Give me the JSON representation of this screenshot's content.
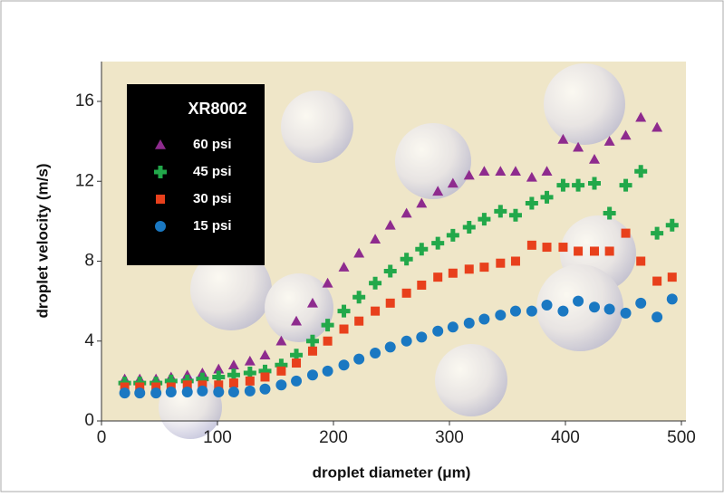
{
  "chart_data": {
    "type": "scatter",
    "x_label": "droplet diameter (μm)",
    "y_label": "droplet velocity (m/s)",
    "legend_title": "XR8002",
    "xlim": [
      0,
      500
    ],
    "xticks": [
      0,
      100,
      200,
      300,
      400,
      500
    ],
    "ylim": [
      0,
      16
    ],
    "yticks": [
      0,
      4,
      8,
      12,
      16
    ],
    "x": [
      20,
      33,
      47,
      60,
      74,
      87,
      101,
      114,
      128,
      141,
      155,
      168,
      182,
      195,
      209,
      222,
      236,
      249,
      263,
      276,
      290,
      303,
      317,
      330,
      344,
      357,
      371,
      384,
      398,
      411,
      425,
      438,
      452,
      465,
      479,
      492
    ],
    "series": [
      {
        "name": "60 psi",
        "color": "#8e2b8e",
        "marker": "triangle",
        "values": [
          2.1,
          2.1,
          2.1,
          2.2,
          2.3,
          2.4,
          2.6,
          2.8,
          3.0,
          3.3,
          4.0,
          5.0,
          5.9,
          6.9,
          7.7,
          8.4,
          9.1,
          9.8,
          10.4,
          10.9,
          11.5,
          11.9,
          12.3,
          12.5,
          12.5,
          12.5,
          12.2,
          12.5,
          14.1,
          13.7,
          13.1,
          14.0,
          14.3,
          15.2,
          14.7,
          null
        ]
      },
      {
        "name": "45 psi",
        "color": "#22a84a",
        "marker": "plus",
        "values": [
          1.9,
          1.9,
          1.9,
          2.0,
          2.0,
          2.1,
          2.2,
          2.3,
          2.4,
          2.5,
          2.8,
          3.3,
          4.0,
          4.8,
          5.5,
          6.2,
          6.9,
          7.5,
          8.1,
          8.6,
          8.9,
          9.3,
          9.7,
          10.1,
          10.5,
          10.3,
          10.9,
          11.2,
          11.8,
          11.8,
          11.9,
          10.4,
          11.8,
          12.5,
          9.4,
          9.8
        ]
      },
      {
        "name": "30 psi",
        "color": "#e8401c",
        "marker": "square",
        "values": [
          1.7,
          1.7,
          1.7,
          1.7,
          1.8,
          1.8,
          1.8,
          1.9,
          2.0,
          2.2,
          2.5,
          2.9,
          3.5,
          4.0,
          4.6,
          5.0,
          5.5,
          5.9,
          6.4,
          6.8,
          7.2,
          7.4,
          7.6,
          7.7,
          7.9,
          8.0,
          8.8,
          8.7,
          8.7,
          8.5,
          8.5,
          8.5,
          9.4,
          8.0,
          7.0,
          7.2
        ]
      },
      {
        "name": "15 psi",
        "color": "#1a78c2",
        "marker": "circle",
        "values": [
          1.4,
          1.4,
          1.4,
          1.45,
          1.45,
          1.5,
          1.45,
          1.45,
          1.5,
          1.6,
          1.8,
          2.0,
          2.3,
          2.5,
          2.8,
          3.1,
          3.4,
          3.7,
          4.0,
          4.2,
          4.5,
          4.7,
          4.9,
          5.1,
          5.3,
          5.5,
          5.5,
          5.8,
          5.5,
          6.0,
          5.7,
          5.6,
          5.4,
          5.9,
          5.2,
          6.1
        ]
      }
    ]
  }
}
